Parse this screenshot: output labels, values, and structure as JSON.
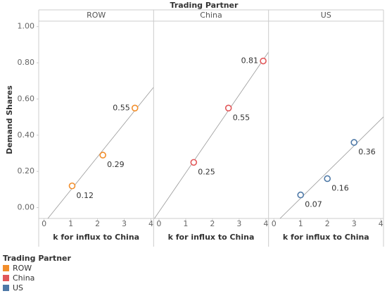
{
  "chart_data": {
    "type": "scatter",
    "title": "Trading Partner",
    "y_label": "Demand Shares",
    "x_label": "k for influx to China",
    "legend_title": "Trading Partner",
    "xlim": [
      -0.2,
      4.1
    ],
    "xticks": [
      0,
      1,
      2,
      3,
      4
    ],
    "ylim": [
      -0.06,
      1.03
    ],
    "yticks": [
      {
        "value": 0,
        "label": "0.00"
      },
      {
        "value": 0.2,
        "label": "0.20"
      },
      {
        "value": 0.4,
        "label": "0.40"
      },
      {
        "value": 0.6,
        "label": "0.60"
      },
      {
        "value": 0.8,
        "label": "0.80"
      },
      {
        "value": 1,
        "label": "1.00"
      }
    ],
    "grid": false,
    "trend_lines": true,
    "series": [
      {
        "name": "ROW",
        "color": "#f28e2b",
        "x": [
          1.05,
          2.2,
          3.4
        ],
        "values": [
          0.12,
          0.29,
          0.55
        ]
      },
      {
        "name": "China",
        "color": "#e15759",
        "x": [
          1.3,
          2.6,
          3.9
        ],
        "values": [
          0.25,
          0.55,
          0.81
        ]
      },
      {
        "name": "US",
        "color": "#4e79a7",
        "x": [
          1.0,
          2.0,
          3.0
        ],
        "values": [
          0.07,
          0.16,
          0.36
        ]
      }
    ]
  }
}
